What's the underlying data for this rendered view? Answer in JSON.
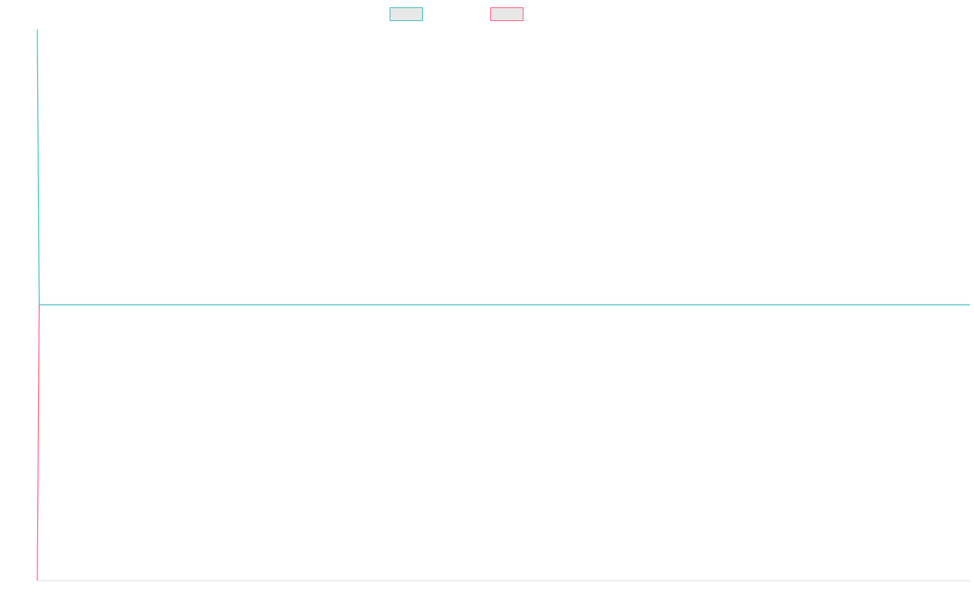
{
  "chart_data": {
    "type": "line",
    "title": "",
    "xlabel": "",
    "ylabel": "",
    "x_range": [
      0,
      100
    ],
    "ylim": [
      -1,
      1
    ],
    "grid": false,
    "legend_placement": "top-center",
    "series": [
      {
        "color": "#4bc0c0",
        "points": [
          [
            0,
            1
          ],
          [
            0.2,
            0
          ],
          [
            100,
            0
          ]
        ]
      },
      {
        "color": "#ff6384",
        "points": [
          [
            0,
            -1
          ],
          [
            0.2,
            0
          ]
        ]
      }
    ]
  },
  "legend": {
    "swatch_fill": "#e8e8e8"
  },
  "axis_color": "#e0e0e0"
}
